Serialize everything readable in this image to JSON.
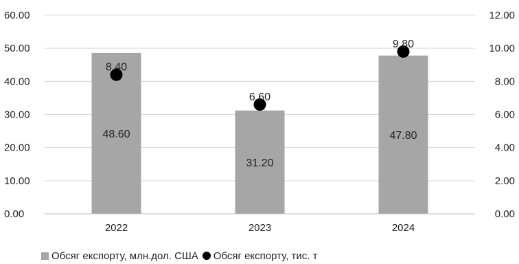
{
  "chart_data": {
    "type": "bar",
    "categories": [
      "2022",
      "2023",
      "2024"
    ],
    "series": [
      {
        "name": "Обсяг експорту, млн.дол. США",
        "kind": "bar",
        "axis": "left",
        "color": "#a6a6a6",
        "values": [
          48.6,
          31.2,
          47.8
        ],
        "labels": [
          "48.60",
          "31.20",
          "47.80"
        ]
      },
      {
        "name": "Обсяг експорту, тис. т",
        "kind": "marker",
        "axis": "right",
        "color": "#000000",
        "values": [
          8.4,
          6.6,
          9.8
        ],
        "labels": [
          "8.40",
          "6.60",
          "9.80"
        ]
      }
    ],
    "y_left": {
      "ylim": [
        0,
        60
      ],
      "ticks": [
        0,
        10,
        20,
        30,
        40,
        50,
        60
      ],
      "tick_labels": [
        "0.00",
        "10.00",
        "20.00",
        "30.00",
        "40.00",
        "50.00",
        "60.00"
      ]
    },
    "y_right": {
      "ylim": [
        0,
        12
      ],
      "ticks": [
        0,
        2,
        4,
        6,
        8,
        10,
        12
      ],
      "tick_labels": [
        "0.00",
        "2.00",
        "4.00",
        "6.00",
        "8.00",
        "10.00",
        "12.00"
      ]
    },
    "grid": true,
    "legend_position": "bottom-left"
  }
}
